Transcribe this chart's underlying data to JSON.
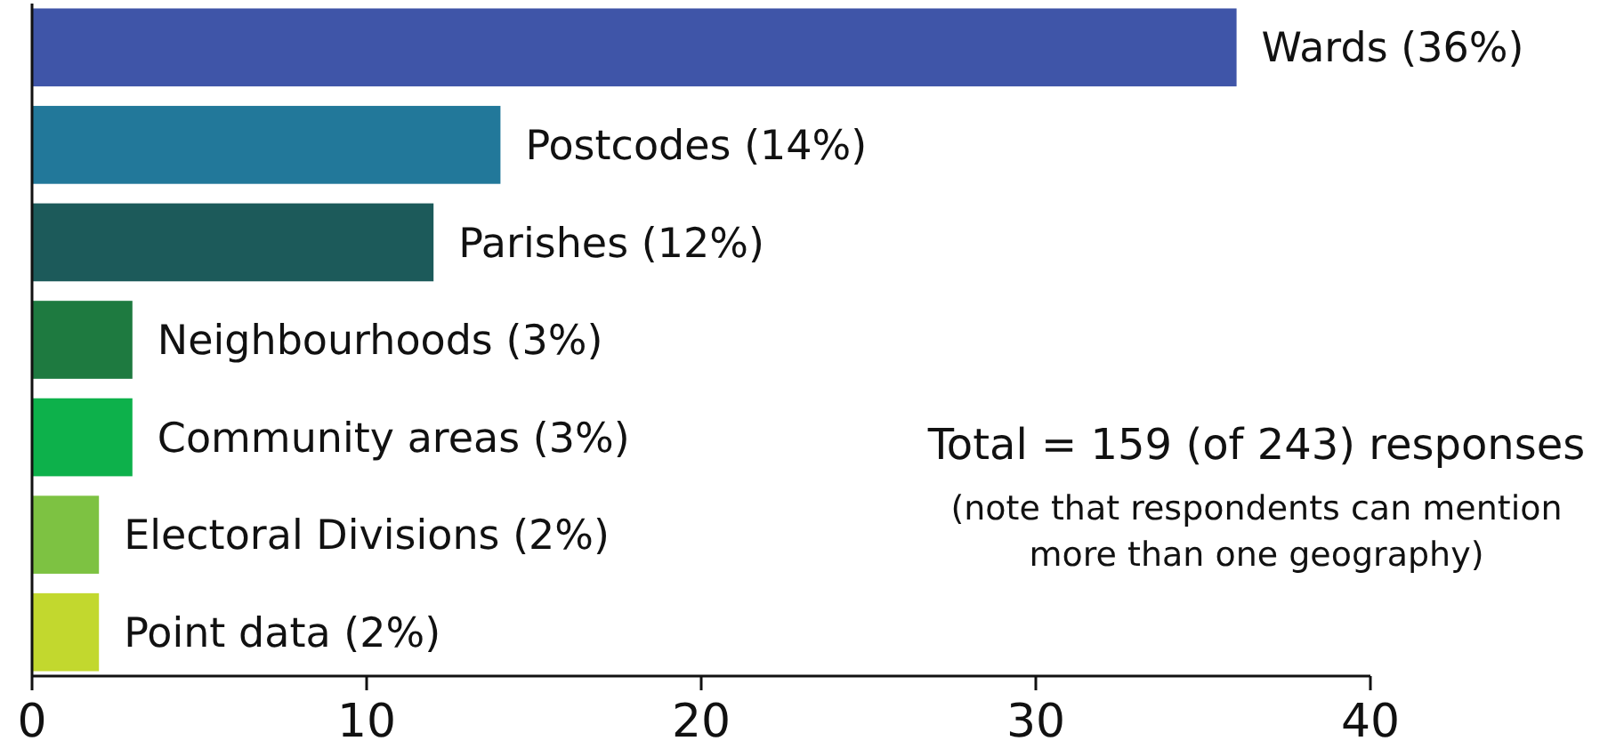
{
  "chart_data": {
    "type": "bar",
    "orientation": "horizontal",
    "categories": [
      "Wards (36%)",
      "Postcodes (14%)",
      "Parishes (12%)",
      "Neighbourhoods (3%)",
      "Community areas (3%)",
      "Electoral Divisions (2%)",
      "Point data (2%)"
    ],
    "values": [
      36,
      14,
      12,
      3,
      3,
      2,
      2
    ],
    "colors": [
      "#3f55a8",
      "#22789a",
      "#1c5a5a",
      "#1e7a40",
      "#0db14b",
      "#7dc242",
      "#c2d82e"
    ],
    "xlim": [
      0,
      40
    ],
    "xticks": [
      0,
      10,
      20,
      30,
      40
    ],
    "grid": false,
    "annotations": [
      "Total = 159 (of 243) responses",
      "(note that respondents can mention more than one geography)"
    ]
  }
}
